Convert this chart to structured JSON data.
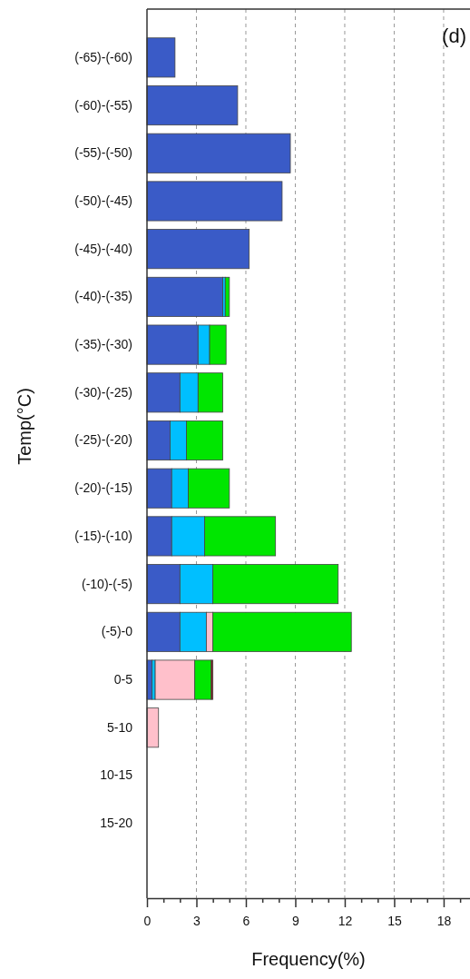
{
  "chart_data": {
    "type": "bar",
    "orientation": "horizontal",
    "stacked": true,
    "xlabel": "Frequency(%)",
    "ylabel": "Temp(°C)",
    "annotations": [
      "(d)"
    ],
    "categories": [
      "(-65)-(-60)",
      "(-60)-(-55)",
      "(-55)-(-50)",
      "(-50)-(-45)",
      "(-45)-(-40)",
      "(-40)-(-35)",
      "(-35)-(-30)",
      "(-30)-(-25)",
      "(-25)-(-20)",
      "(-20)-(-15)",
      "(-15)-(-10)",
      "(-10)-(-5)",
      "(-5)-0",
      "0-5",
      "5-10",
      "10-15",
      "15-20"
    ],
    "series": [
      {
        "color": "#3a5bc7",
        "values": [
          1.7,
          5.5,
          8.7,
          8.2,
          6.2,
          4.6,
          3.1,
          2.0,
          1.4,
          1.5,
          1.5,
          2.0,
          2.0,
          0.3,
          null,
          null,
          null
        ]
      },
      {
        "color": "#00bfff",
        "values": [
          null,
          null,
          null,
          null,
          null,
          0.15,
          0.7,
          1.1,
          1.0,
          1.0,
          2.0,
          2.0,
          1.6,
          0.2,
          null,
          null,
          null
        ]
      },
      {
        "color": "#ffc0cb",
        "values": [
          null,
          null,
          null,
          null,
          null,
          null,
          null,
          null,
          null,
          null,
          null,
          null,
          0.4,
          2.4,
          0.7,
          null,
          null
        ]
      },
      {
        "color": "#00e600",
        "values": [
          null,
          null,
          null,
          null,
          null,
          0.25,
          1.0,
          1.5,
          2.2,
          2.5,
          4.3,
          7.6,
          8.4,
          1.0,
          null,
          null,
          null
        ]
      },
      {
        "color": "#8b1a1a",
        "values": [
          null,
          null,
          null,
          null,
          null,
          null,
          null,
          null,
          null,
          null,
          null,
          null,
          null,
          0.1,
          null,
          null,
          null
        ]
      }
    ],
    "xlim": [
      0,
      19.6
    ],
    "xticks": [
      0,
      {
        "value": 1,
        "label": null
      },
      {
        "value": 2,
        "label": null
      },
      3,
      {
        "value": 4,
        "label": null
      },
      {
        "value": 5,
        "label": null
      },
      6,
      {
        "value": 7,
        "label": null
      },
      {
        "value": 8,
        "label": null
      },
      9,
      {
        "value": 10,
        "label": null
      },
      {
        "value": 11,
        "label": null
      },
      12,
      {
        "value": 13,
        "label": null
      },
      {
        "value": 14,
        "label": null
      },
      15,
      {
        "value": 16,
        "label": null
      },
      {
        "value": 17,
        "label": null
      },
      18,
      {
        "value": 19,
        "label": null
      }
    ],
    "grid": "x",
    "line_style": "dashed"
  }
}
